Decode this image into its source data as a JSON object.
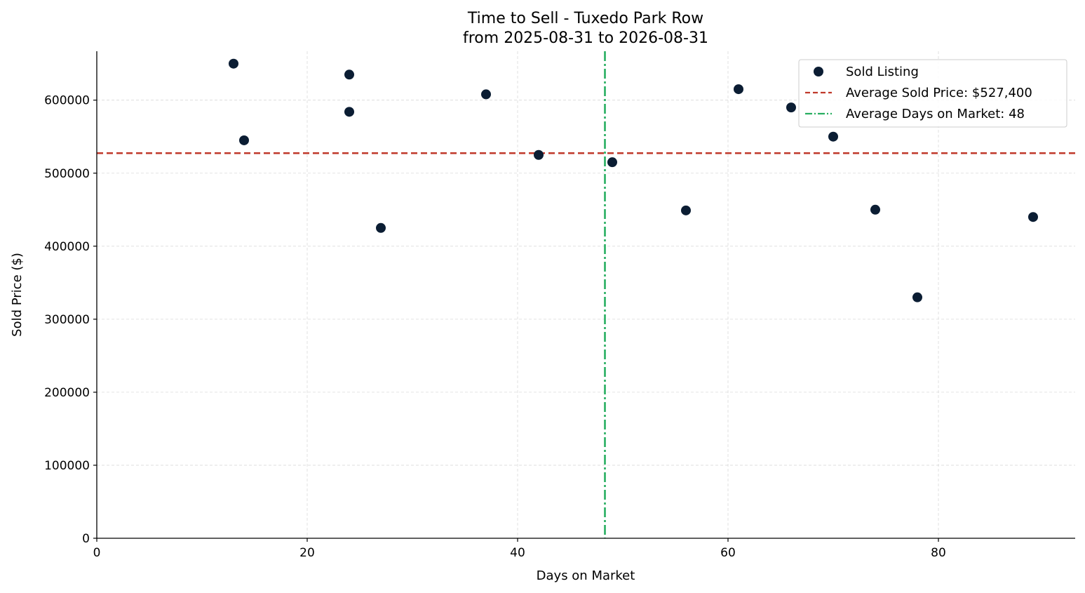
{
  "chart_data": {
    "type": "scatter",
    "title": "Time to Sell - Tuxedo Park Row",
    "subtitle": "from 2025-08-31 to 2026-08-31",
    "xlabel": "Days on Market",
    "ylabel": "Sold Price ($)",
    "xlim": [
      0,
      93
    ],
    "ylim": [
      0,
      667000
    ],
    "xticks": [
      0,
      20,
      40,
      60,
      80
    ],
    "yticks": [
      0,
      100000,
      200000,
      300000,
      400000,
      500000,
      600000
    ],
    "grid": true,
    "legend_position": "top-right",
    "series": [
      {
        "name": "Sold Listing",
        "color": "#0b1d33",
        "points": [
          {
            "x": 13,
            "y": 650000
          },
          {
            "x": 14,
            "y": 545000
          },
          {
            "x": 24,
            "y": 635000
          },
          {
            "x": 24,
            "y": 584000
          },
          {
            "x": 27,
            "y": 425000
          },
          {
            "x": 37,
            "y": 608000
          },
          {
            "x": 42,
            "y": 525000
          },
          {
            "x": 49,
            "y": 515000
          },
          {
            "x": 56,
            "y": 449000
          },
          {
            "x": 61,
            "y": 615000
          },
          {
            "x": 66,
            "y": 590000
          },
          {
            "x": 70,
            "y": 550000
          },
          {
            "x": 74,
            "y": 450000
          },
          {
            "x": 78,
            "y": 330000
          },
          {
            "x": 89,
            "y": 440000
          }
        ]
      }
    ],
    "reference_lines": [
      {
        "name": "Average Sold Price: $527,400",
        "orientation": "horizontal",
        "value": 527400,
        "color": "#c0392b",
        "style": "dashed"
      },
      {
        "name": "Average Days on Market: 48",
        "orientation": "vertical",
        "value": 48.3,
        "color": "#27ae60",
        "style": "dashdot"
      }
    ]
  }
}
